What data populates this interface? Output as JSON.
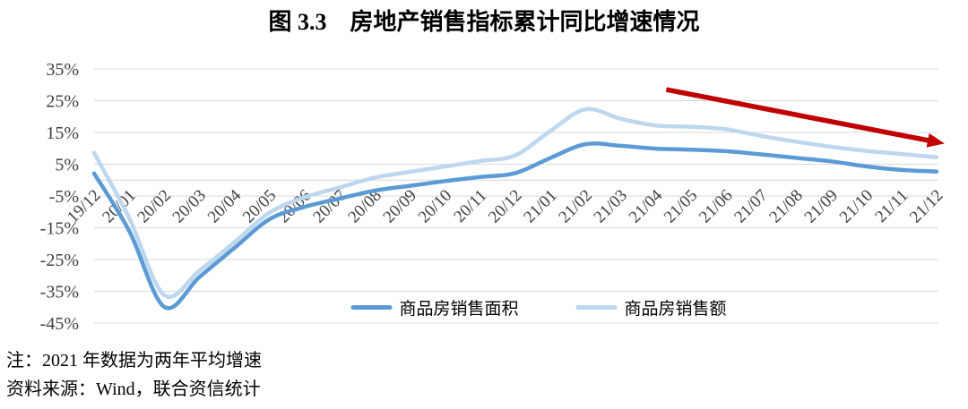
{
  "figure": {
    "title": "图 3.3　房地产销售指标累计同比增速情况",
    "note": "注：2021 年数据为两年平均增速",
    "source": "资料来源：Wind，联合资信统计"
  },
  "chart_data": {
    "type": "line",
    "title": "图 3.3　房地产销售指标累计同比增速情况",
    "categories": [
      "19/12",
      "20/01",
      "20/02",
      "20/03",
      "20/04",
      "20/05",
      "20/06",
      "20/07",
      "20/08",
      "20/09",
      "20/10",
      "20/11",
      "20/12",
      "21/01",
      "21/02",
      "21/03",
      "21/04",
      "21/05",
      "21/06",
      "21/07",
      "21/08",
      "21/09",
      "21/10",
      "21/11",
      "21/12"
    ],
    "series": [
      {
        "name": "商品房销售面积",
        "color": "#5B9BD5",
        "values": [
          2.1,
          -16.0,
          -39.9,
          -30.5,
          -21.3,
          -12.3,
          -8.4,
          -5.8,
          -3.3,
          -1.8,
          -0.3,
          1.0,
          2.2,
          7.0,
          11.3,
          10.8,
          9.9,
          9.6,
          9.1,
          8.1,
          7.0,
          5.9,
          4.3,
          3.2,
          2.7
        ]
      },
      {
        "name": "商品房销售额",
        "color": "#BDD7EE",
        "values": [
          8.6,
          -12.0,
          -36.2,
          -28.5,
          -19.5,
          -10.2,
          -5.4,
          -2.3,
          0.8,
          2.6,
          4.3,
          6.0,
          7.8,
          15.5,
          22.3,
          19.3,
          17.2,
          16.8,
          16.0,
          13.9,
          12.1,
          10.5,
          9.2,
          8.2,
          7.2
        ]
      }
    ],
    "ylim": [
      -45,
      35
    ],
    "yticks": [
      35,
      25,
      15,
      5,
      -5,
      -15,
      -25,
      -35,
      -45
    ],
    "ytick_suffix": "%",
    "grid": true,
    "smooth": true,
    "legend_position": "bottom",
    "annotation": {
      "type": "arrow",
      "description": "red downward trend arrow over 2021 data",
      "color": "#C00000",
      "from": {
        "x_index": 16.3,
        "value": 28.5
      },
      "to": {
        "x_index": 23.9,
        "value": 12.2
      }
    }
  },
  "style": {
    "accent_dark_blue": "#5B9BD5",
    "accent_light_blue": "#BDD7EE",
    "arrow_red": "#C00000",
    "gridline_color": "#D9D9D9",
    "axis_line_color": "#D6D6D6",
    "axis_label_color": "#404040",
    "text_color": "#000000",
    "background": "#FFFFFF"
  }
}
